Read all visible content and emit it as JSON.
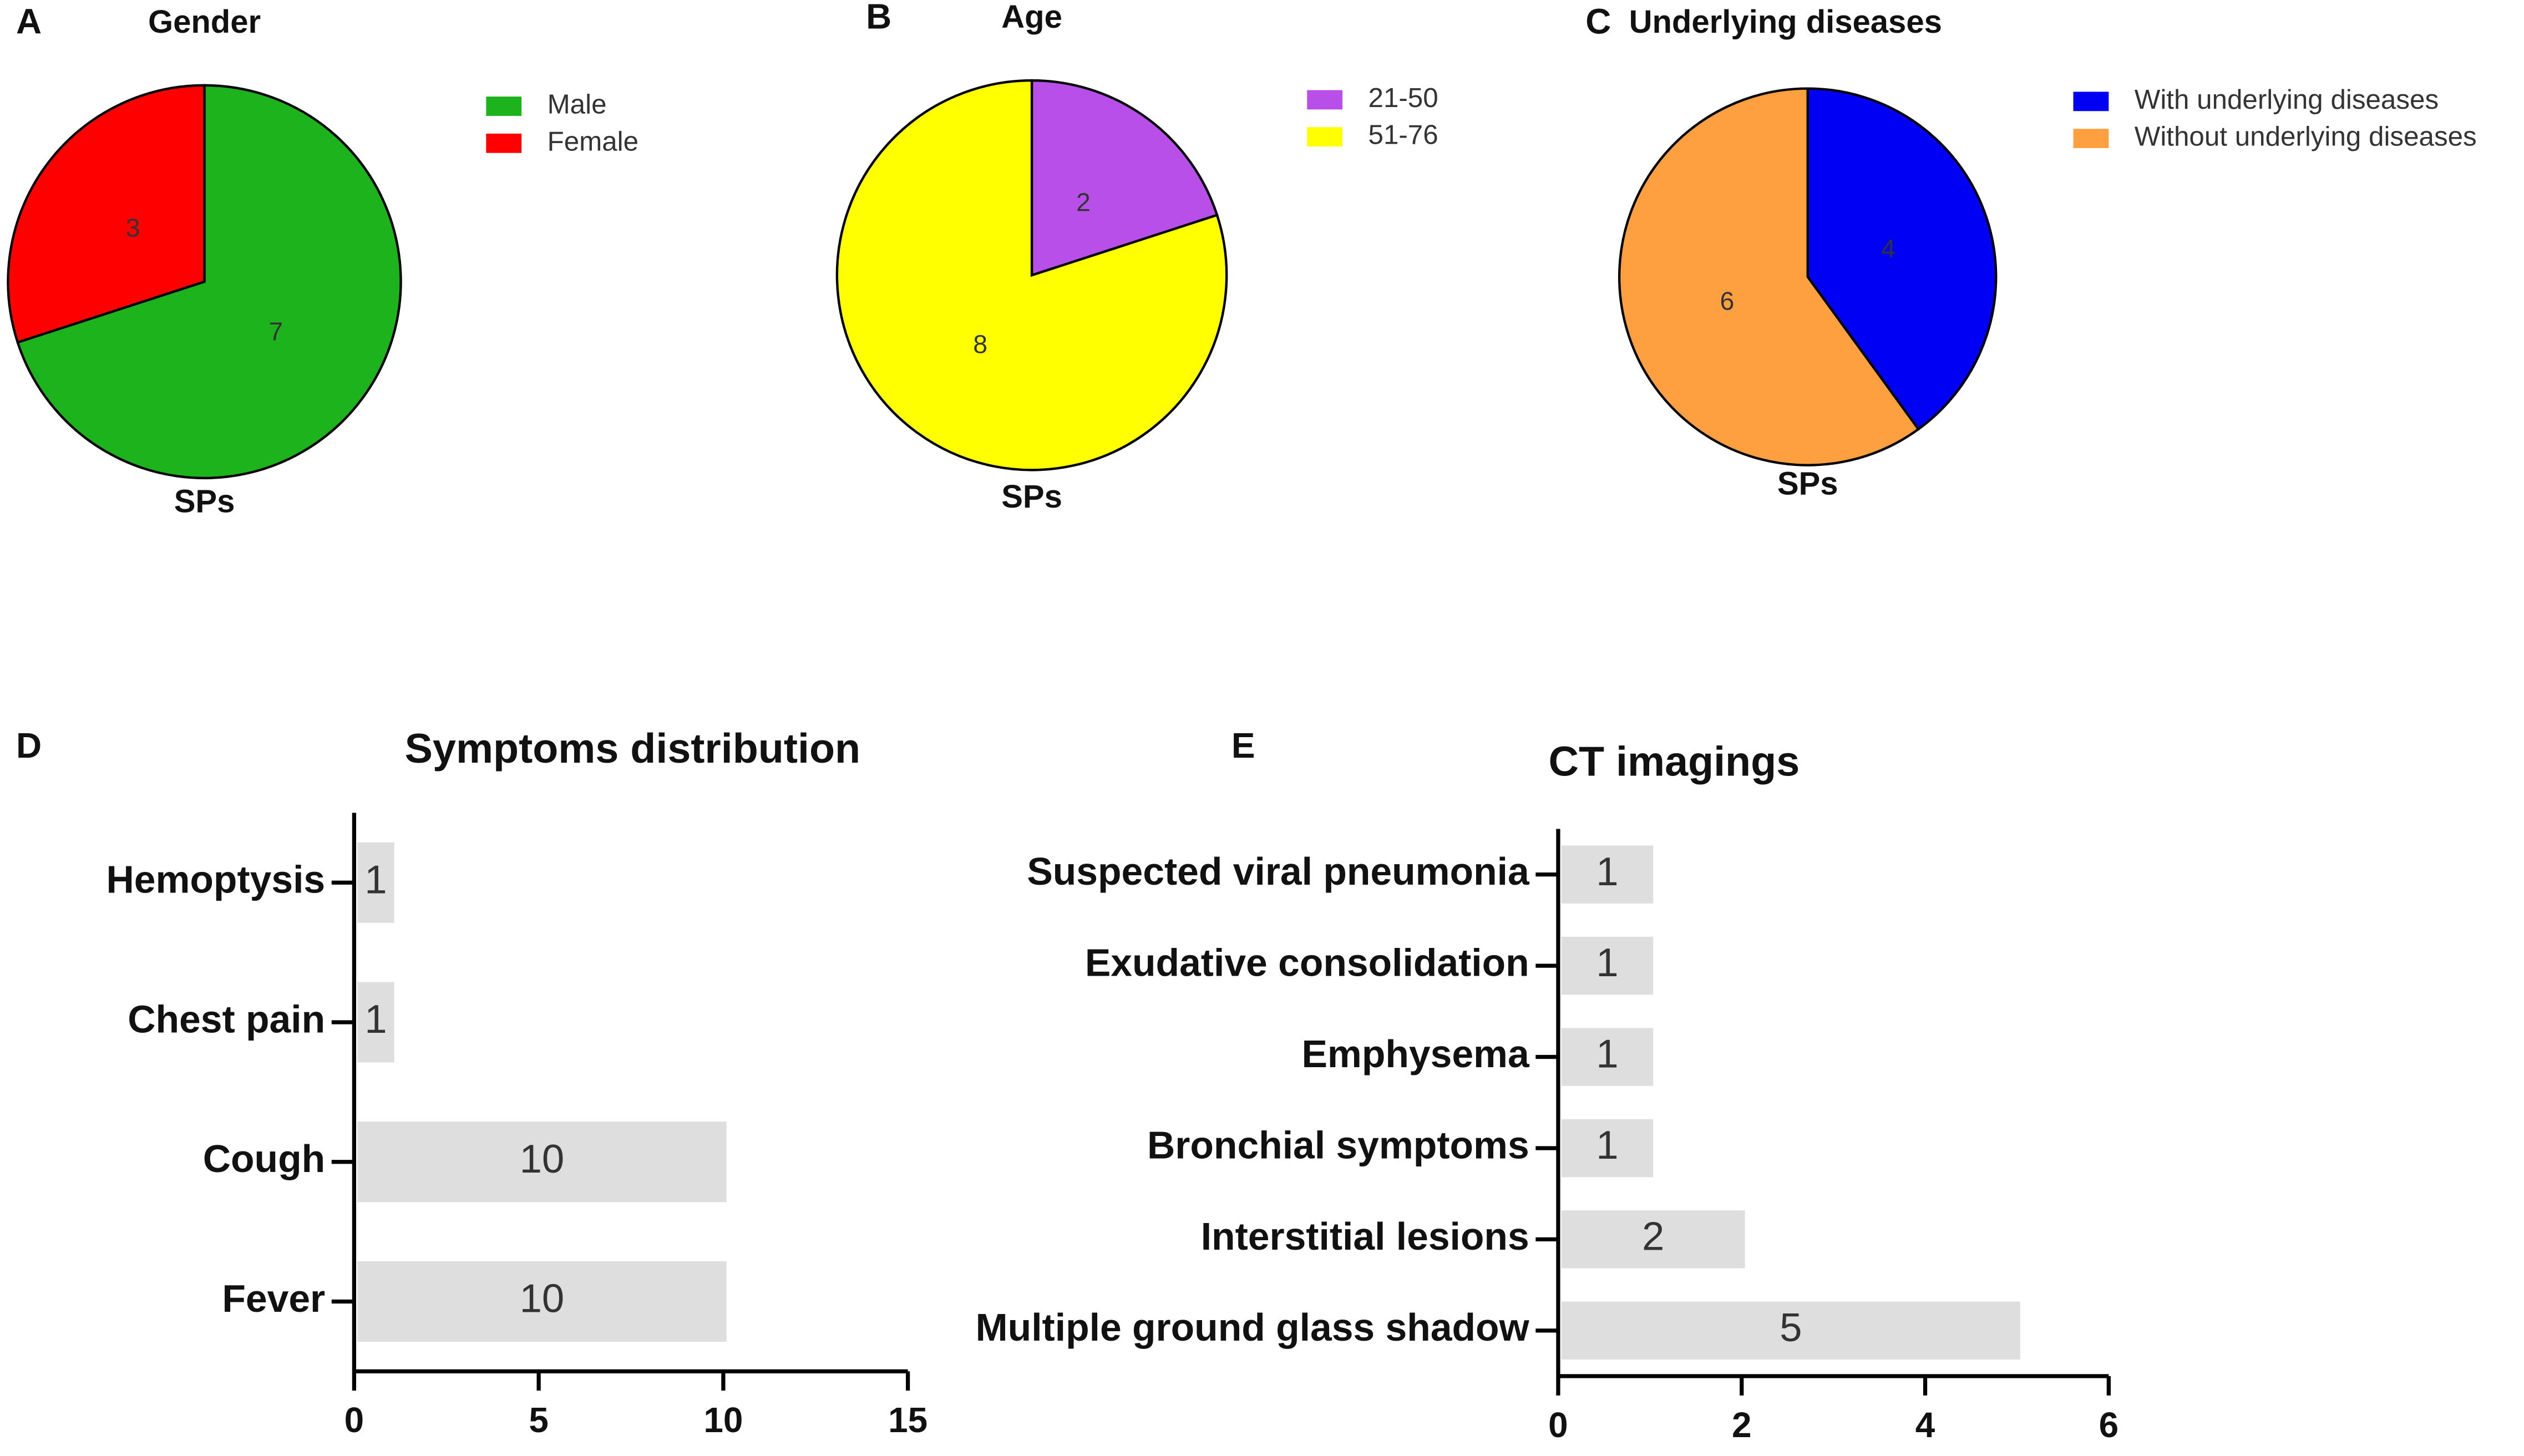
{
  "chart_data": [
    {
      "type": "pie",
      "panel": "A",
      "title": "Gender",
      "label": "SPs",
      "categories": [
        "Male",
        "Female"
      ],
      "values": [
        7,
        3
      ],
      "colors": [
        "#1db31d",
        "#ff0000"
      ],
      "legend": "right"
    },
    {
      "type": "pie",
      "panel": "B",
      "title": "Age",
      "label": "SPs",
      "categories": [
        "21-50",
        "51-76"
      ],
      "values": [
        2,
        8
      ],
      "colors": [
        "#b84fe8",
        "#ffff00"
      ],
      "legend": "right"
    },
    {
      "type": "pie",
      "panel": "C",
      "title": "Underlying diseases",
      "label": "SPs",
      "categories": [
        "With underlying diseases",
        "Without underlying diseases"
      ],
      "values": [
        4,
        6
      ],
      "colors": [
        "#0000f5",
        "#ffa040"
      ],
      "legend": "right"
    },
    {
      "type": "barh",
      "panel": "D",
      "title": "Symptoms distribution",
      "categories": [
        "Hemoptysis",
        "Chest pain",
        "Cough",
        "Fever"
      ],
      "values": [
        1,
        1,
        10,
        10
      ],
      "color": "#dedede",
      "xlim": [
        0,
        15
      ],
      "xticks": [
        0,
        5,
        10,
        15
      ]
    },
    {
      "type": "barh",
      "panel": "E",
      "title": "CT imagings",
      "categories": [
        "Suspected viral pneumonia",
        "Exudative consolidation",
        "Emphysema",
        "Bronchial symptoms",
        "Interstitial lesions",
        "Multiple ground glass shadow"
      ],
      "values": [
        1,
        1,
        1,
        1,
        2,
        5
      ],
      "color": "#dedede",
      "xlim": [
        0,
        6
      ],
      "xticks": [
        0,
        2,
        4,
        6
      ]
    }
  ]
}
